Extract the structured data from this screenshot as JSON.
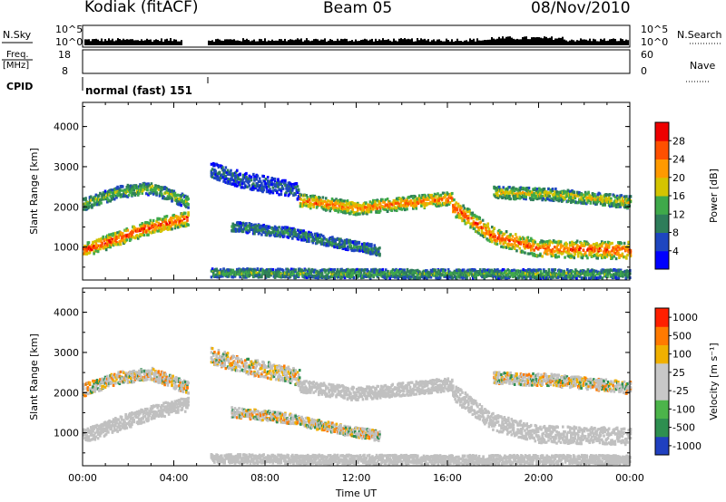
{
  "header": {
    "station": "Kodiak (fitACF)",
    "beam": "Beam 05",
    "date": "08/Nov/2010"
  },
  "strip": {
    "nsky_label": "N.Sky",
    "nsearch_label": "N.Search",
    "count_ticks": [
      "10^5",
      "10^0"
    ],
    "freq_label_1": "Freq.",
    "freq_label_2": "[MHz]",
    "freq_ticks": [
      "18",
      "8"
    ],
    "nave_label": "Nave",
    "nave_ticks": [
      "60",
      "0"
    ],
    "cpid_label": "CPID",
    "cpid_value": "normal (fast) 151",
    "colors": {
      "line": "#000000"
    }
  },
  "chart_data": [
    {
      "type": "heatmap",
      "title": "",
      "xlabel": "",
      "ylabel": "Slant Range [km]",
      "xlim": [
        0,
        24
      ],
      "ylim": [
        180,
        4600
      ],
      "yticks": [
        "1000",
        "2000",
        "3000",
        "4000"
      ],
      "colorbar": {
        "label": "Power [dB]",
        "range": [
          0,
          32
        ],
        "ticks": [
          "4",
          "8",
          "12",
          "16",
          "20",
          "24",
          "28"
        ],
        "colors": [
          "#0000ff",
          "#1e46c0",
          "#2e7d5a",
          "#3fa94a",
          "#d4c400",
          "#ff9a00",
          "#ff5000",
          "#ee0000"
        ]
      },
      "data_gap_hours": [
        4.75,
        5.4
      ],
      "bands": [
        {
          "t": [
            0.0,
            1.5,
            3.0,
            4.6
          ],
          "r": [
            900,
            1200,
            1500,
            1700
          ],
          "width": 350,
          "level": 0.9
        },
        {
          "t": [
            0.0,
            1.5,
            3.0,
            4.6
          ],
          "r": [
            2050,
            2350,
            2450,
            2100
          ],
          "width": 300,
          "level": 0.5
        },
        {
          "t": [
            5.6,
            7.0,
            8.5,
            9.5
          ],
          "r": [
            2900,
            2650,
            2500,
            2350
          ],
          "width": 400,
          "level": 0.25
        },
        {
          "t": [
            9.5,
            12.0,
            14.5,
            16.2
          ],
          "r": [
            2150,
            1950,
            2100,
            2200
          ],
          "width": 320,
          "level": 0.8
        },
        {
          "t": [
            16.2,
            18.0,
            20.0,
            24.0
          ],
          "r": [
            2000,
            1250,
            950,
            900
          ],
          "width": 420,
          "level": 0.85
        },
        {
          "t": [
            18.0,
            20.5,
            24.0
          ],
          "r": [
            2350,
            2300,
            2100
          ],
          "width": 300,
          "level": 0.6
        },
        {
          "t": [
            6.5,
            9.0,
            11.0,
            13.0
          ],
          "r": [
            1500,
            1350,
            1100,
            900
          ],
          "width": 250,
          "level": 0.35
        },
        {
          "t": [
            5.6,
            10.0,
            16.0,
            24.0
          ],
          "r": [
            350,
            330,
            320,
            320
          ],
          "width": 220,
          "level": 0.45
        }
      ]
    },
    {
      "type": "heatmap",
      "title": "",
      "xlabel": "Time UT",
      "ylabel": "Slant Range [km]",
      "xlim": [
        0,
        24
      ],
      "ylim": [
        180,
        4600
      ],
      "xticks": [
        "00:00",
        "04:00",
        "08:00",
        "12:00",
        "16:00",
        "20:00",
        "00:00"
      ],
      "yticks": [
        "1000",
        "2000",
        "3000",
        "4000"
      ],
      "colorbar": {
        "label": "Velocity [m s⁻¹]",
        "ticks": [
          "1000",
          "500",
          "100",
          "25",
          "-25",
          "-100",
          "-500",
          "-1000"
        ],
        "colors": [
          "#2040c0",
          "#2e8f50",
          "#4cb44a",
          "#c8c8c8",
          "#c8c8c8",
          "#f0b000",
          "#ff7a00",
          "#ff2000"
        ]
      },
      "data_gap_hours": [
        4.75,
        5.4
      ],
      "ground_scatter_color": "#c0c0c0",
      "ionospheric_colors": [
        "#2e8f50",
        "#f0b000",
        "#ff7a00"
      ],
      "bands": [
        {
          "t": [
            0.0,
            1.5,
            3.0,
            4.6
          ],
          "r": [
            900,
            1200,
            1500,
            1700
          ],
          "width": 350,
          "level": 0.9
        },
        {
          "t": [
            0.0,
            1.5,
            3.0,
            4.6
          ],
          "r": [
            2050,
            2350,
            2450,
            2100
          ],
          "width": 300,
          "level": 0.5
        },
        {
          "t": [
            5.6,
            7.0,
            8.5,
            9.5
          ],
          "r": [
            2900,
            2650,
            2500,
            2350
          ],
          "width": 400,
          "level": 0.25
        },
        {
          "t": [
            9.5,
            12.0,
            14.5,
            16.2
          ],
          "r": [
            2150,
            1950,
            2100,
            2200
          ],
          "width": 320,
          "level": 0.8
        },
        {
          "t": [
            16.2,
            18.0,
            20.0,
            24.0
          ],
          "r": [
            2000,
            1250,
            950,
            900
          ],
          "width": 420,
          "level": 0.85
        },
        {
          "t": [
            18.0,
            20.5,
            24.0
          ],
          "r": [
            2350,
            2300,
            2100
          ],
          "width": 300,
          "level": 0.6
        },
        {
          "t": [
            6.5,
            9.0,
            11.0,
            13.0
          ],
          "r": [
            1500,
            1350,
            1100,
            900
          ],
          "width": 250,
          "level": 0.35
        },
        {
          "t": [
            5.6,
            10.0,
            16.0,
            24.0
          ],
          "r": [
            350,
            330,
            320,
            320
          ],
          "width": 220,
          "level": 0.45
        }
      ]
    }
  ]
}
